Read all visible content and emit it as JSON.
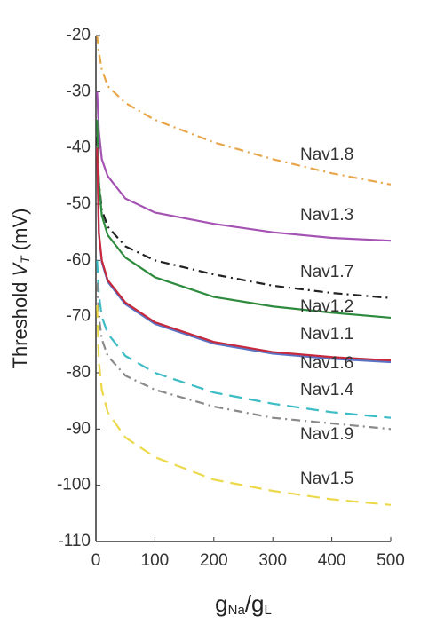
{
  "chart_data": {
    "type": "line",
    "ylabel": [
      "Threshold ",
      "V",
      "T",
      " (mV)"
    ],
    "xlabel": [
      "g",
      "Na",
      "/g",
      "L"
    ],
    "x": [
      2,
      5,
      10,
      20,
      50,
      100,
      200,
      300,
      400,
      500
    ],
    "xlim": [
      0,
      500
    ],
    "xticks": [
      0,
      100,
      200,
      300,
      400,
      500
    ],
    "ylim": [
      -110,
      -20
    ],
    "yticks": [
      -110,
      -100,
      -90,
      -80,
      -70,
      -60,
      -50,
      -40,
      -30,
      -20
    ],
    "series": [
      {
        "name": "Nav1.8",
        "color": "#e8a64a",
        "dash": "dashdot",
        "values": [
          -20,
          -23,
          -26,
          -29,
          -32,
          -35,
          -39,
          -42,
          -44.5,
          -46.5
        ]
      },
      {
        "name": "Nav1.3",
        "color": "#a453b3",
        "dash": "solid",
        "values": [
          -30,
          -37,
          -42,
          -45,
          -49,
          -51.5,
          -53.5,
          -55,
          -56,
          -56.5
        ]
      },
      {
        "name": "Nav1.7",
        "color": "#222222",
        "dash": "dashdot",
        "values": [
          -38,
          -46,
          -51,
          -54,
          -57.5,
          -60,
          -62.5,
          -64.5,
          -65.8,
          -66.7
        ]
      },
      {
        "name": "Nav1.2",
        "color": "#2e8b3e",
        "dash": "solid",
        "values": [
          -35,
          -46,
          -52,
          -55.5,
          -59.5,
          -63,
          -66.5,
          -68.2,
          -69.3,
          -70.2
        ]
      },
      {
        "name": "Nav1.1",
        "color": "#5a73c4",
        "dash": "solid",
        "values": [
          -40,
          -55.3,
          -60.3,
          -63.8,
          -67.8,
          -71.3,
          -74.8,
          -76.6,
          -77.5,
          -78.1
        ]
      },
      {
        "name": "Nav1.6",
        "color": "#c8283c",
        "dash": "solid",
        "values": [
          -40,
          -55,
          -60,
          -63.5,
          -67.5,
          -71,
          -74.5,
          -76.3,
          -77.2,
          -77.8
        ]
      },
      {
        "name": "Nav1.4",
        "color": "#3cbcc4",
        "dash": "dashed",
        "values": [
          -60,
          -66,
          -70,
          -73,
          -77,
          -80,
          -83.5,
          -85.5,
          -87,
          -88
        ]
      },
      {
        "name": "Nav1.9",
        "color": "#8a8a8a",
        "dash": "dashdot",
        "values": [
          -64,
          -70,
          -74,
          -77,
          -80.5,
          -83,
          -86,
          -88,
          -89,
          -90
        ]
      },
      {
        "name": "Nav1.5",
        "color": "#ecd94a",
        "dash": "dashed",
        "values": [
          -68,
          -78,
          -83,
          -87,
          -91.5,
          -95,
          -99,
          -101,
          -102.5,
          -103.5
        ]
      }
    ]
  }
}
